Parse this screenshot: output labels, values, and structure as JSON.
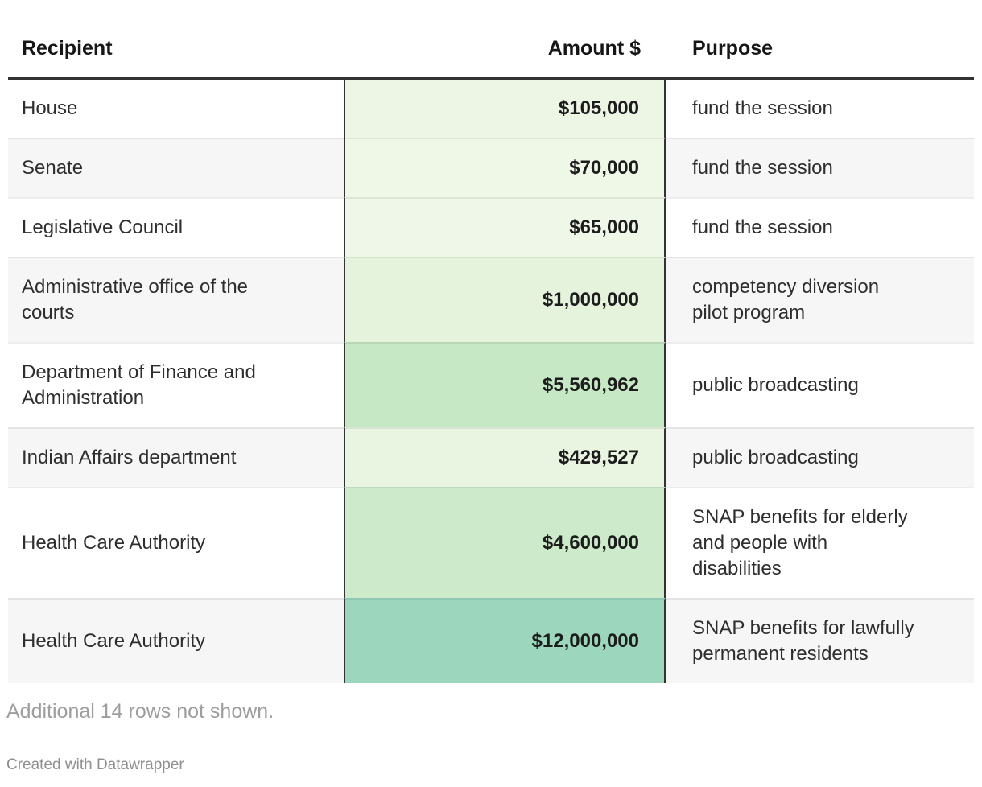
{
  "chart_data": {
    "type": "table",
    "columns": [
      "Recipient",
      "Amount $",
      "Purpose"
    ],
    "rows": [
      {
        "recipient": "House",
        "amount": 105000,
        "purpose": "fund the session"
      },
      {
        "recipient": "Senate",
        "amount": 70000,
        "purpose": "fund the session"
      },
      {
        "recipient": "Legislative Council",
        "amount": 65000,
        "purpose": "fund the session"
      },
      {
        "recipient": "Administrative office of the courts",
        "amount": 1000000,
        "purpose": "competency diversion pilot program"
      },
      {
        "recipient": "Department of Finance and Administration",
        "amount": 5560962,
        "purpose": "public broadcasting"
      },
      {
        "recipient": "Indian Affairs department",
        "amount": 429527,
        "purpose": "public broadcasting"
      },
      {
        "recipient": "Health Care Authority",
        "amount": 4600000,
        "purpose": "SNAP benefits for elderly and people with disabilities"
      },
      {
        "recipient": "Health Care Authority",
        "amount": 12000000,
        "purpose": "SNAP benefits for lawfully permanent residents"
      }
    ],
    "heatmap": {
      "column": "Amount $",
      "palette": "greens",
      "min_color": "#eff7e8",
      "max_color": "#9bd6bd"
    },
    "note": "Additional 14 rows not shown."
  },
  "table": {
    "headers": {
      "recipient": "Recipient",
      "amount": "Amount $",
      "purpose": "Purpose"
    },
    "rows": [
      {
        "recipient": "House",
        "amount": "$105,000",
        "purpose": "fund the session",
        "amount_bg": "#edf6e5"
      },
      {
        "recipient": "Senate",
        "amount": "$70,000",
        "purpose": "fund the session",
        "amount_bg": "#eff7e7"
      },
      {
        "recipient": "Legislative Council",
        "amount": "$65,000",
        "purpose": "fund the session",
        "amount_bg": "#eff7e8"
      },
      {
        "recipient": "Administrative office of the\ncourts",
        "amount": "$1,000,000",
        "purpose": "competency diversion\npilot program",
        "amount_bg": "#e5f3dc"
      },
      {
        "recipient": "Department of Finance and\nAdministration",
        "amount": "$5,560,962",
        "purpose": "public broadcasting",
        "amount_bg": "#c7e8c4"
      },
      {
        "recipient": "Indian Affairs department",
        "amount": "$429,527",
        "purpose": "public broadcasting",
        "amount_bg": "#e9f5e1"
      },
      {
        "recipient": "Health Care Authority",
        "amount": "$4,600,000",
        "purpose": "SNAP benefits for elderly\nand people with\ndisabilities",
        "amount_bg": "#cdebca"
      },
      {
        "recipient": "Health Care Authority",
        "amount": "$12,000,000",
        "purpose": "SNAP benefits for lawfully\npermanent residents",
        "amount_bg": "#9bd6bd"
      }
    ]
  },
  "footer": {
    "note": "Additional 14 rows not shown.",
    "credit": "Created with Datawrapper"
  },
  "colors": {
    "border_dark": "#333333",
    "row_stripe": "#f6f6f6",
    "body_text": "#2e2e2e",
    "note_text": "#9e9e9e",
    "credit_text": "#8f8f8f"
  }
}
